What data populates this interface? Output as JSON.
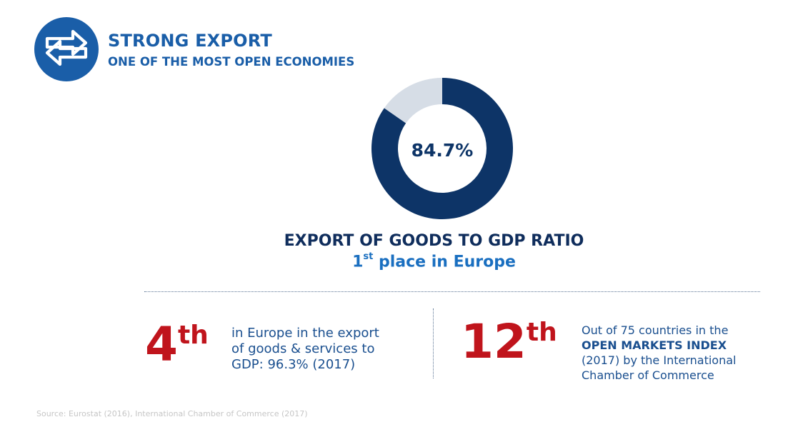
{
  "header": {
    "icon": "exchange-arrows-icon",
    "title": "STRONG EXPORT",
    "subtitle": "ONE OF THE MOST OPEN ECONOMIES"
  },
  "chart_data": {
    "type": "pie",
    "style": "donut",
    "value_percent": 84.7,
    "center_label": "84.7%",
    "slices": [
      {
        "value": 84.7,
        "color": "#0d3467"
      },
      {
        "value": 15.3,
        "color": "#d6dde6"
      }
    ],
    "title": "EXPORT OF GOODS TO GDP RATIO",
    "subtitle_rank": "1",
    "subtitle_suffix": "st",
    "subtitle_rest": " place in Europe"
  },
  "stats": [
    {
      "rank": "4",
      "suffix": "th",
      "lines": [
        "in Europe in the export",
        "of goods & services to",
        "GDP: 96.3% (2017)"
      ]
    },
    {
      "rank": "12",
      "suffix": "th",
      "line1": "Out of 75 countries in the",
      "line2_strong": "OPEN MARKETS INDEX",
      "line3": "(2017) by the International",
      "line4": "Chamber of Commerce"
    }
  ],
  "source": "Source: Eurostat (2016), International Chamber of Commerce (2017)",
  "colors": {
    "brand_blue": "#1a5ea8",
    "dark_navy": "#0d3467",
    "accent_red": "#c0141c",
    "donut_remainder": "#d6dde6"
  }
}
